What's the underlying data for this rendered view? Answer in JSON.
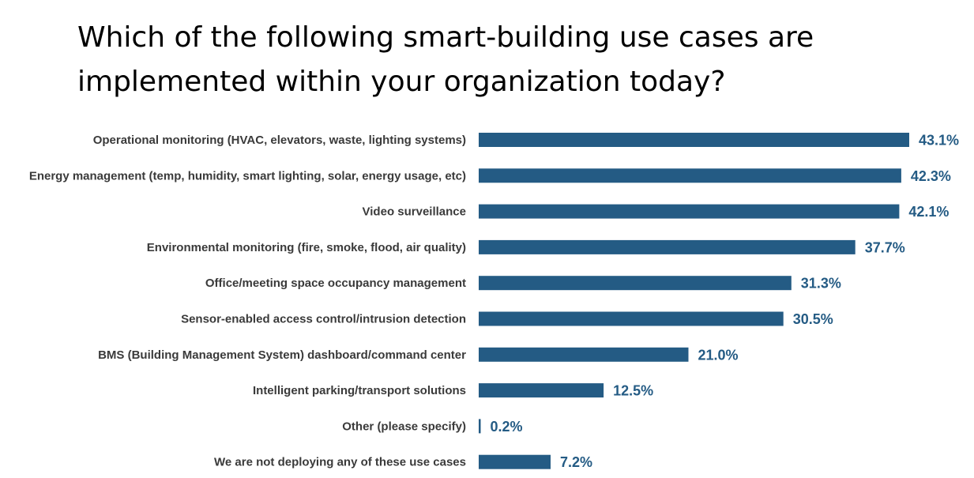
{
  "title": "Which of the following smart-building use cases are implemented within your organization today?",
  "colors": {
    "bar": "#245b84",
    "value_text": "#245b84",
    "label_text": "#3a3a3a"
  },
  "chart_data": {
    "type": "bar",
    "orientation": "horizontal",
    "title": "Which of the following smart-building use cases are implemented within your organization today?",
    "xlabel": "",
    "ylabel": "",
    "grid": false,
    "legend": "none",
    "categories": [
      "Operational monitoring (HVAC, elevators, waste, lighting systems)",
      "Energy management (temp, humidity, smart lighting, solar, energy usage, etc)",
      "Video surveillance",
      "Environmental monitoring (fire, smoke, flood, air quality)",
      "Office/meeting space occupancy management",
      "Sensor-enabled access control/intrusion detection",
      "BMS (Building Management System) dashboard/command center",
      "Intelligent parking/transport solutions",
      "Other (please specify)",
      "We are not deploying any of these use cases"
    ],
    "values": [
      43.1,
      42.3,
      42.1,
      37.7,
      31.3,
      30.5,
      21.0,
      12.5,
      0.2,
      7.2
    ],
    "value_labels": [
      "43.1%",
      "42.3%",
      "42.1%",
      "37.7%",
      "31.3%",
      "30.5%",
      "21.0%",
      "12.5%",
      "0.2%",
      "7.2%"
    ],
    "xlim": [
      0,
      43.1
    ]
  }
}
